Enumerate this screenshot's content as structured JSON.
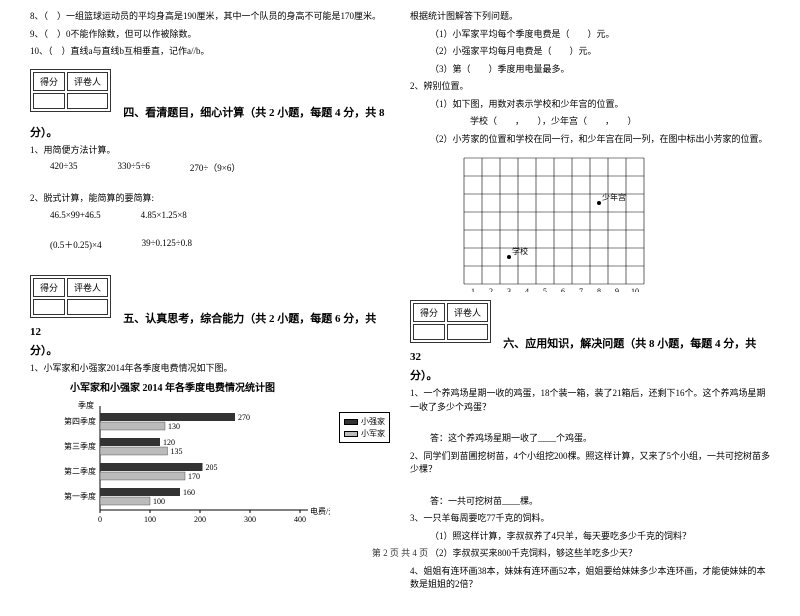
{
  "left": {
    "q8": "8、（　）一组篮球运动员的平均身高是190厘米，其中一个队员的身高不可能是170厘米。",
    "q9": "9、（　）0不能作除数，但可以作被除数。",
    "q10": "10、（　）直线a与直线b互相垂直，记作a//b。",
    "score_label1": "得分",
    "score_label2": "评卷人",
    "section4": "四、看清题目，细心计算（共 2 小题，每题 4 分，共 8",
    "fen": "分）。",
    "q4_1": "1、用简便方法计算。",
    "e1": "420÷35",
    "e2": "330÷5÷6",
    "e3": "270÷（9×6）",
    "q4_2": "2、脱式计算，能简算的要简算:",
    "e4": "46.5×99+46.5",
    "e5": "4.85×1.25×8",
    "e6": "(0.5＋0.25)×4",
    "e7": "39÷0.125÷0.8",
    "section5": "五、认真思考，综合能力（共 2 小题，每题 6 分，共 12",
    "q5_1": "1、小军家和小强家2014年各季度电费情况如下图。",
    "chart_title": "小军家和小强家 2014 年各季度电费情况统计图",
    "legend1": "小强家",
    "legend2": "小军家",
    "chart": {
      "y_labels": [
        "第四季度",
        "第三季度",
        "第二季度",
        "第一季度"
      ],
      "x_ticks": [
        0,
        100,
        200,
        300,
        400
      ],
      "x_label": "电费/元",
      "y_label": "季度",
      "series_qiang": [
        270,
        120,
        205,
        160
      ],
      "series_jun": [
        130,
        135,
        170,
        100
      ],
      "color_qiang": "#333333",
      "color_jun": "#bbbbbb",
      "max": 400
    }
  },
  "right": {
    "intro": "根据统计图解答下列问题。",
    "r1": "（1）小军家平均每个季度电费是（　　）元。",
    "r2": "（2）小强家平均每月电费是（　　）元。",
    "r3": "（3）第（　　）季度用电量最多。",
    "q5_2": "2、辨别位置。",
    "r4": "（1）如下图，用数对表示学校和少年宫的位置。",
    "r5": "学校（　　，　　），少年宫（　　，　　）",
    "r6": "（2）小芳家的位置和学校在同一行，和少年宫在同一列，在图中标出小芳家的位置。",
    "grid": {
      "cols": 10,
      "rows": 7,
      "x_labels": [
        "1",
        "2",
        "3",
        "4",
        "5",
        "6",
        "7",
        "8",
        "9",
        "10"
      ],
      "school_label": "学校",
      "school_pos": [
        3,
        2
      ],
      "palace_label": "少年宫",
      "palace_pos": [
        8,
        5
      ]
    },
    "score_label1": "得分",
    "score_label2": "评卷人",
    "section6": "六、应用知识，解决问题（共 8 小题，每题 4 分，共 32",
    "fen": "分）。",
    "q6_1": "1、一个养鸡场星期一收的鸡蛋，18个装一箱，装了21箱后，还剩下16个。这个养鸡场星期一收了多少个鸡蛋？",
    "a6_1": "答：这个养鸡场星期一收了____个鸡蛋。",
    "q6_2": "2、同学们到苗圃挖树苗，4个小组挖200棵。照这样计算，又来了5个小组，一共可挖树苗多少棵？",
    "a6_2": "答：一共可挖树苗____棵。",
    "q6_3": "3、一只羊每周要吃77千克的饲料。",
    "q6_3a": "（1）照这样计算，李叔叔养了4只羊，每天要吃多少千克的饲料？",
    "q6_3b": "（2）李叔叔买来800千克饲料，够这些羊吃多少天？",
    "q6_4": "4、姐姐有连环画38本，妹妹有连环画52本，姐姐要给妹妹多少本连环画，才能使妹妹的本数是姐姐的2倍？"
  },
  "footer": "第 2 页 共 4 页"
}
